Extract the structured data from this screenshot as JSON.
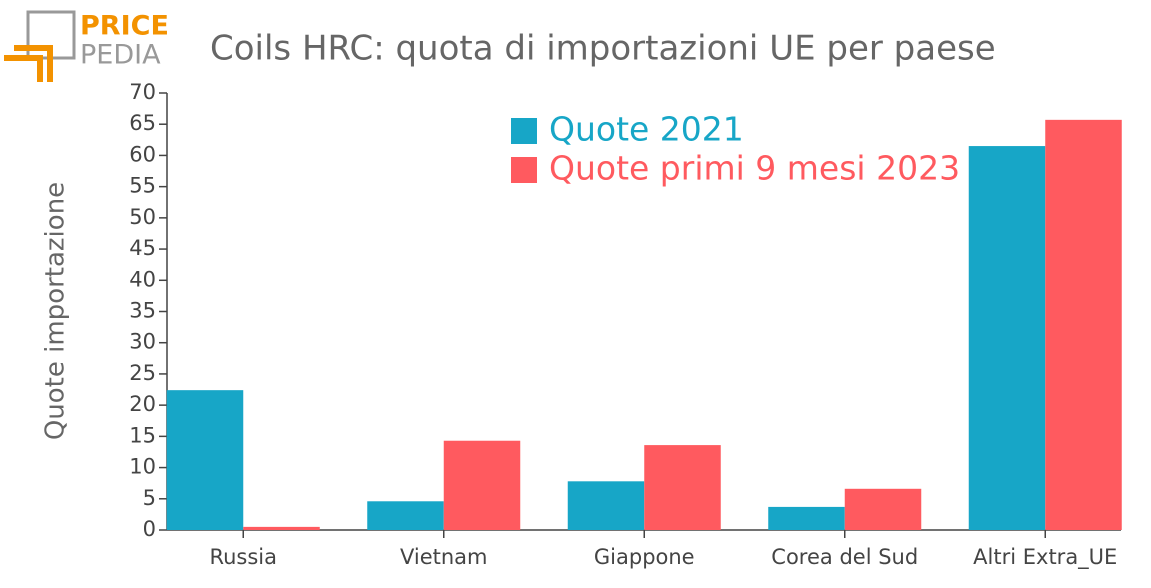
{
  "logo": {
    "line1": "PRICE",
    "line2": "PEDIA"
  },
  "chart_data": {
    "type": "bar",
    "title": "Coils HRC: quota di importazioni UE per paese",
    "y_label": "Quote importazione",
    "categories": [
      "Russia",
      "Vietnam",
      "Giappone",
      "Corea del Sud",
      "Altri Extra_UE"
    ],
    "series": [
      {
        "name": "Quote 2021",
        "color": "#17a6c7",
        "values": [
          22.4,
          4.6,
          7.8,
          3.7,
          61.5
        ]
      },
      {
        "name": "Quote primi 9 mesi 2023",
        "color": "#ff5a5f",
        "values": [
          0.5,
          14.3,
          13.6,
          6.6,
          65.7
        ]
      }
    ],
    "ylim": [
      0,
      70
    ],
    "yticks": [
      0,
      5,
      10,
      15,
      20,
      25,
      30,
      35,
      40,
      45,
      50,
      55,
      60,
      65,
      70
    ],
    "legend": "top-right"
  }
}
